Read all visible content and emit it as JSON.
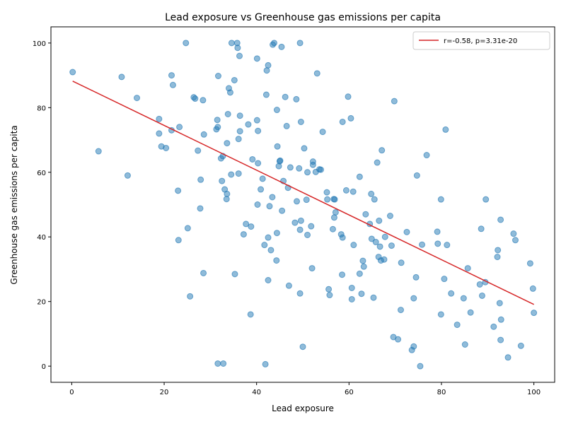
{
  "chart_data": {
    "type": "scatter",
    "title": "Lead exposure vs Greenhouse gas emissions per capita",
    "xlabel": "Lead exposure",
    "ylabel": "Greenhouse gas emissions per capita",
    "xlim": [
      -4.5,
      104.5
    ],
    "ylim": [
      -5,
      105
    ],
    "xticks": [
      0,
      20,
      40,
      60,
      80,
      100
    ],
    "yticks": [
      0,
      20,
      40,
      60,
      80,
      100
    ],
    "grid": false,
    "legend": {
      "position": "top-right",
      "entries": [
        "r=-0.58, p=3.31e-20"
      ]
    },
    "colors": {
      "points": "#1f77b4",
      "fit_line": "#d62728"
    },
    "series": [
      {
        "kind": "points",
        "points": [
          [
            0.2,
            91
          ],
          [
            10.8,
            89.5
          ],
          [
            14.1,
            83
          ],
          [
            5.8,
            66.5
          ],
          [
            12.1,
            59
          ],
          [
            18.9,
            76.5
          ],
          [
            18.9,
            72
          ],
          [
            19.4,
            68
          ],
          [
            20.4,
            67.5
          ],
          [
            21.6,
            90
          ],
          [
            21.9,
            87
          ],
          [
            21.6,
            73
          ],
          [
            23.3,
            74
          ],
          [
            23,
            54.3
          ],
          [
            23.1,
            39
          ],
          [
            24.7,
            100
          ],
          [
            25.1,
            42.7
          ],
          [
            25.6,
            21.6
          ],
          [
            26.4,
            83.2
          ],
          [
            26.7,
            82.8
          ],
          [
            27.3,
            66.7
          ],
          [
            27.9,
            57.7
          ],
          [
            27.8,
            48.8
          ],
          [
            28.4,
            82.3
          ],
          [
            28.6,
            71.7
          ],
          [
            28.5,
            28.8
          ],
          [
            31.3,
            73.3
          ],
          [
            31.6,
            74
          ],
          [
            31.5,
            76.2
          ],
          [
            31.7,
            89.8
          ],
          [
            32.3,
            64.3
          ],
          [
            32.5,
            57.3
          ],
          [
            32.7,
            65
          ],
          [
            33.1,
            54.7
          ],
          [
            33.5,
            51.7
          ],
          [
            33.6,
            53.3
          ],
          [
            33.6,
            69
          ],
          [
            33.8,
            78
          ],
          [
            34,
            86
          ],
          [
            34.3,
            84.7
          ],
          [
            34.5,
            59.3
          ],
          [
            34.6,
            100
          ],
          [
            35.2,
            88.5
          ],
          [
            35.3,
            28.5
          ],
          [
            35.8,
            100
          ],
          [
            35.9,
            98.5
          ],
          [
            36.1,
            59.6
          ],
          [
            36.1,
            70.3
          ],
          [
            36.4,
            72.7
          ],
          [
            36.4,
            77.5
          ],
          [
            36.3,
            96
          ],
          [
            37.2,
            40.8
          ],
          [
            37.7,
            44
          ],
          [
            38.2,
            74.8
          ],
          [
            38.8,
            43.2
          ],
          [
            38.7,
            16
          ],
          [
            39.1,
            64
          ],
          [
            40.1,
            95.2
          ],
          [
            40.1,
            76.1
          ],
          [
            40.3,
            72.8
          ],
          [
            40.3,
            62.8
          ],
          [
            40.2,
            50
          ],
          [
            40.9,
            54.7
          ],
          [
            41.3,
            58
          ],
          [
            41.7,
            37.5
          ],
          [
            42.1,
            84
          ],
          [
            42.2,
            91.5
          ],
          [
            42.5,
            93.1
          ],
          [
            42.5,
            26.6
          ],
          [
            42.5,
            39.8
          ],
          [
            42.8,
            49.5
          ],
          [
            43.1,
            35.9
          ],
          [
            43.4,
            52.3
          ],
          [
            43.5,
            99.5
          ],
          [
            43.8,
            100
          ],
          [
            44.3,
            32.7
          ],
          [
            44.4,
            79.3
          ],
          [
            44.4,
            41.2
          ],
          [
            44.5,
            68
          ],
          [
            44.8,
            61.9
          ],
          [
            45,
            63.4
          ],
          [
            45.1,
            63.6
          ],
          [
            45.4,
            98.8
          ],
          [
            45.5,
            48.1
          ],
          [
            45.8,
            57.3
          ],
          [
            46.2,
            83.3
          ],
          [
            46.5,
            74.3
          ],
          [
            46.8,
            55.2
          ],
          [
            47,
            24.9
          ],
          [
            47.3,
            61.5
          ],
          [
            48.3,
            44.4
          ],
          [
            48.6,
            82.6
          ],
          [
            48.7,
            51
          ],
          [
            49.2,
            61.2
          ],
          [
            49.4,
            42.2
          ],
          [
            49.4,
            22.5
          ],
          [
            49.6,
            45
          ],
          [
            49.6,
            75.6
          ],
          [
            49.4,
            100
          ],
          [
            50,
            6
          ],
          [
            50.3,
            67.4
          ],
          [
            50.8,
            51.5
          ],
          [
            51,
            60
          ],
          [
            51,
            40.6
          ],
          [
            51.8,
            43.3
          ],
          [
            52,
            30.3
          ],
          [
            52.2,
            63.3
          ],
          [
            52.2,
            62.3
          ],
          [
            52.8,
            60.1
          ],
          [
            53.1,
            90.6
          ],
          [
            53.6,
            60.9
          ],
          [
            53.9,
            60.8
          ],
          [
            54.3,
            72.5
          ],
          [
            55.2,
            53.8
          ],
          [
            55.3,
            51.6
          ],
          [
            55.6,
            23.8
          ],
          [
            55.8,
            22
          ],
          [
            56.5,
            42.4
          ],
          [
            56.7,
            51.7
          ],
          [
            56.8,
            46
          ],
          [
            56.9,
            51.6
          ],
          [
            57.1,
            47.6
          ],
          [
            58.3,
            40.8
          ],
          [
            58.6,
            39.8
          ],
          [
            58.5,
            28.3
          ],
          [
            58.6,
            75.6
          ],
          [
            59.4,
            54.4
          ],
          [
            59.8,
            83.4
          ],
          [
            60.4,
            76.7
          ],
          [
            60.6,
            20.7
          ],
          [
            60.6,
            24.2
          ],
          [
            60.9,
            54
          ],
          [
            61,
            37.5
          ],
          [
            62.3,
            58.6
          ],
          [
            62.3,
            28.6
          ],
          [
            62.7,
            22.4
          ],
          [
            63,
            32.6
          ],
          [
            63.2,
            30.8
          ],
          [
            63.6,
            47
          ],
          [
            64.5,
            44
          ],
          [
            64.8,
            53.3
          ],
          [
            64.9,
            39.4
          ],
          [
            65.3,
            21.2
          ],
          [
            65.5,
            51.6
          ],
          [
            65.8,
            38.4
          ],
          [
            66.1,
            63
          ],
          [
            66.4,
            33.8
          ],
          [
            66.5,
            45
          ],
          [
            66.7,
            37
          ],
          [
            66.9,
            32.7
          ],
          [
            67.1,
            66.8
          ],
          [
            67.6,
            33
          ],
          [
            67.8,
            40
          ],
          [
            68.9,
            46.5
          ],
          [
            69.2,
            37.3
          ],
          [
            69.6,
            9
          ],
          [
            69.8,
            82
          ],
          [
            70.6,
            8.3
          ],
          [
            71.3,
            32
          ],
          [
            71.2,
            17.4
          ],
          [
            72.5,
            41.5
          ],
          [
            73.6,
            5
          ],
          [
            74,
            6.1
          ],
          [
            74,
            21
          ],
          [
            74.5,
            27.5
          ],
          [
            74.7,
            59
          ],
          [
            75.4,
            0
          ],
          [
            75.8,
            37.6
          ],
          [
            76.8,
            65.3
          ],
          [
            79.1,
            41.6
          ],
          [
            79.2,
            37.9
          ],
          [
            79.9,
            16
          ],
          [
            79.9,
            51.6
          ],
          [
            80.6,
            27
          ],
          [
            80.9,
            73.2
          ],
          [
            81.2,
            37.5
          ],
          [
            82.1,
            22.5
          ],
          [
            83.4,
            12.8
          ],
          [
            84.8,
            21
          ],
          [
            85.1,
            6.7
          ],
          [
            85.7,
            30.3
          ],
          [
            86.3,
            16.6
          ],
          [
            88.3,
            25.3
          ],
          [
            88.6,
            42.5
          ],
          [
            88.8,
            21.8
          ],
          [
            89.5,
            26
          ],
          [
            89.6,
            51.6
          ],
          [
            91.3,
            12.2
          ],
          [
            92.1,
            33.8
          ],
          [
            92.2,
            35.9
          ],
          [
            92.6,
            19.5
          ],
          [
            92.8,
            45.3
          ],
          [
            92.8,
            8.1
          ],
          [
            92.9,
            14.4
          ],
          [
            94.4,
            2.7
          ],
          [
            95.6,
            41
          ],
          [
            96,
            39
          ],
          [
            97.2,
            6.3
          ],
          [
            99.2,
            31.8
          ],
          [
            99.8,
            24
          ],
          [
            100,
            16.5
          ],
          [
            31.6,
            0.8
          ],
          [
            32.8,
            0.8
          ],
          [
            41.9,
            0.6
          ]
        ]
      },
      {
        "kind": "fit-line",
        "name": "r=-0.58, p=3.31e-20",
        "points": [
          [
            0.2,
            88.2
          ],
          [
            100,
            19.1
          ]
        ]
      }
    ]
  }
}
